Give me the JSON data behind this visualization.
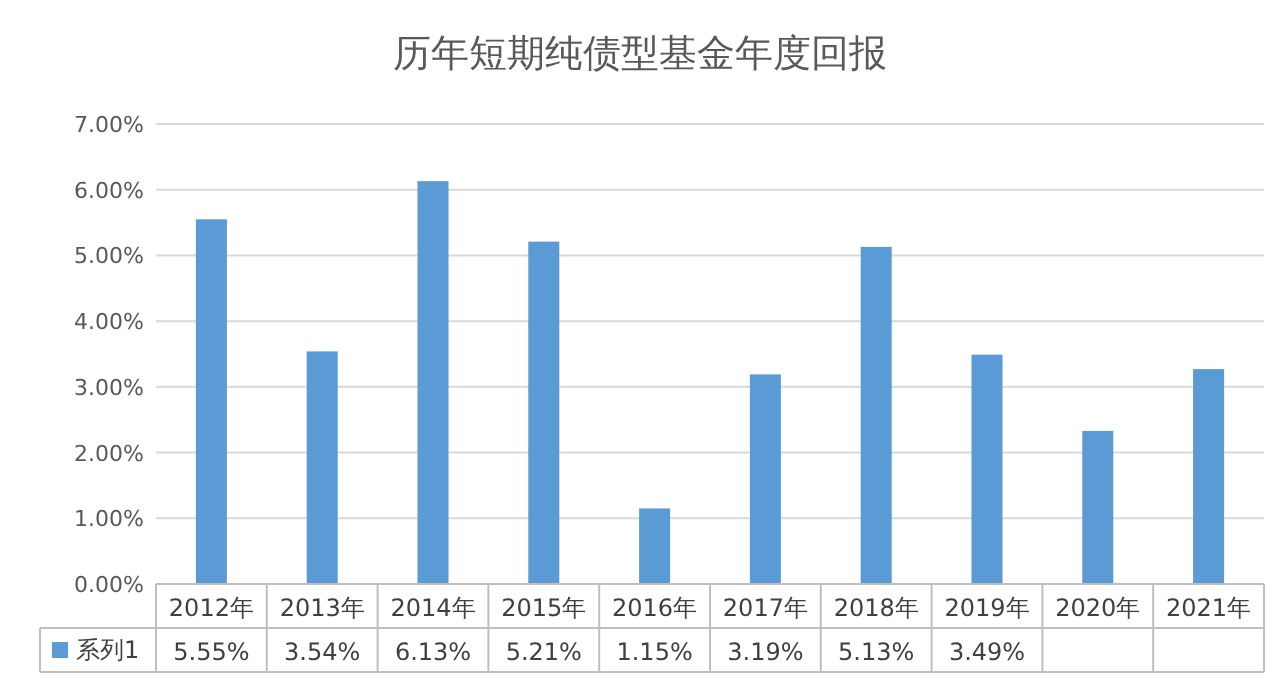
{
  "chart_data": {
    "type": "bar",
    "title": "历年短期纯债型基金年度回报",
    "categories": [
      "2012年",
      "2013年",
      "2014年",
      "2015年",
      "2016年",
      "2017年",
      "2018年",
      "2019年",
      "2020年",
      "2021年"
    ],
    "series": [
      {
        "name": "系列1",
        "color": "#5b9bd5",
        "values": [
          5.55,
          3.54,
          6.13,
          5.21,
          1.15,
          3.19,
          5.13,
          3.49,
          2.33,
          3.27
        ],
        "value_labels": [
          "5.55%",
          "3.54%",
          "6.13%",
          "5.21%",
          "1.15%",
          "3.19%",
          "5.13%",
          "3.49%",
          null,
          null
        ]
      }
    ],
    "ylim": [
      0,
      7
    ],
    "yticks": [
      {
        "value": 0,
        "label": "0.00%"
      },
      {
        "value": 1,
        "label": "1.00%"
      },
      {
        "value": 2,
        "label": "2.00%"
      },
      {
        "value": 3,
        "label": "3.00%"
      },
      {
        "value": 4,
        "label": "4.00%"
      },
      {
        "value": 5,
        "label": "5.00%"
      },
      {
        "value": 6,
        "label": "6.00%"
      },
      {
        "value": 7,
        "label": "7.00%"
      }
    ],
    "grid": "y",
    "legend": "bottom"
  }
}
